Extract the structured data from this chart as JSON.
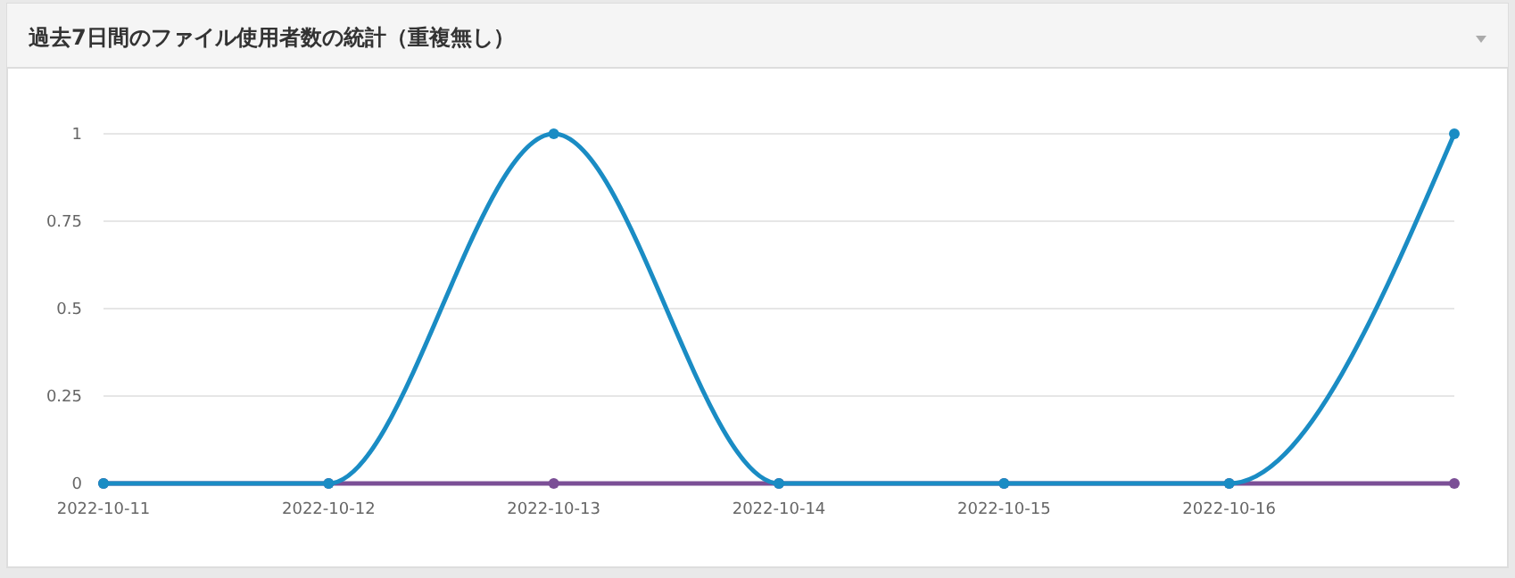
{
  "chart_data": {
    "type": "line",
    "title": "過去7日間のファイル使用者数の統計（重複無し）",
    "categories": [
      "2022-10-11",
      "2022-10-12",
      "2022-10-13",
      "2022-10-14",
      "2022-10-15",
      "2022-10-16",
      null
    ],
    "series": [
      {
        "color": "#7b4f96",
        "values": [
          0,
          0,
          0,
          0,
          0,
          0,
          0
        ]
      },
      {
        "color": "#1a8cc4",
        "values": [
          0,
          0,
          1,
          0,
          0,
          0,
          1
        ]
      }
    ],
    "ylim": [
      0,
      1
    ],
    "yticks": [
      0,
      0.25,
      0.5,
      0.75,
      1
    ],
    "grid": "y",
    "marker": "circle",
    "line_style": "solid"
  }
}
